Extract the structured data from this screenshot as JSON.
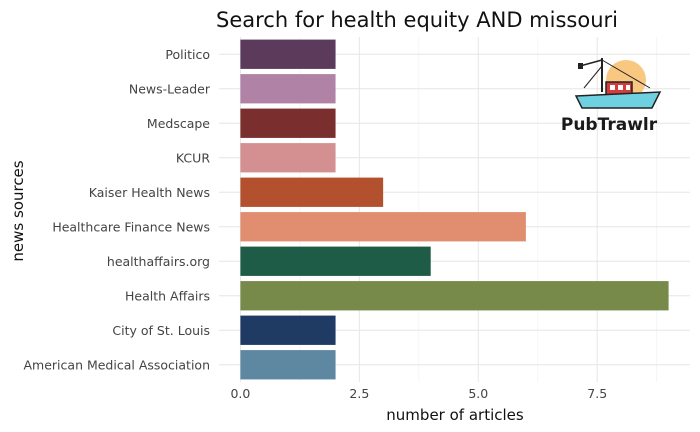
{
  "chart_data": {
    "type": "bar",
    "orientation": "horizontal",
    "title": "Search for health equity AND missouri",
    "xlabel": "number of articles",
    "ylabel": "news sources",
    "xlim": [
      -0.45,
      9.45
    ],
    "xticks": [
      0,
      2.5,
      5,
      7.5
    ],
    "xtick_labels": [
      "0.0",
      "2.5",
      "5.0",
      "7.5"
    ],
    "grid": true,
    "legend": "none",
    "categories": [
      "Politico",
      "News-Leader",
      "Medscape",
      "KCUR",
      "Kaiser Health News",
      "Healthcare Finance News",
      "healthaffairs.org",
      "Health Affairs",
      "City of St. Louis",
      "American Medical Association"
    ],
    "values": [
      2,
      2,
      2,
      2,
      3,
      6,
      4,
      9,
      2,
      2
    ],
    "colors": [
      "#5b3a5c",
      "#b083a6",
      "#7a2e2e",
      "#d49090",
      "#b3512f",
      "#e08d70",
      "#1f5c47",
      "#778a4a",
      "#1f3a63",
      "#5e87a1"
    ]
  },
  "logo": {
    "text": "PubTrawlr",
    "icon": "fishing-boat-icon"
  }
}
